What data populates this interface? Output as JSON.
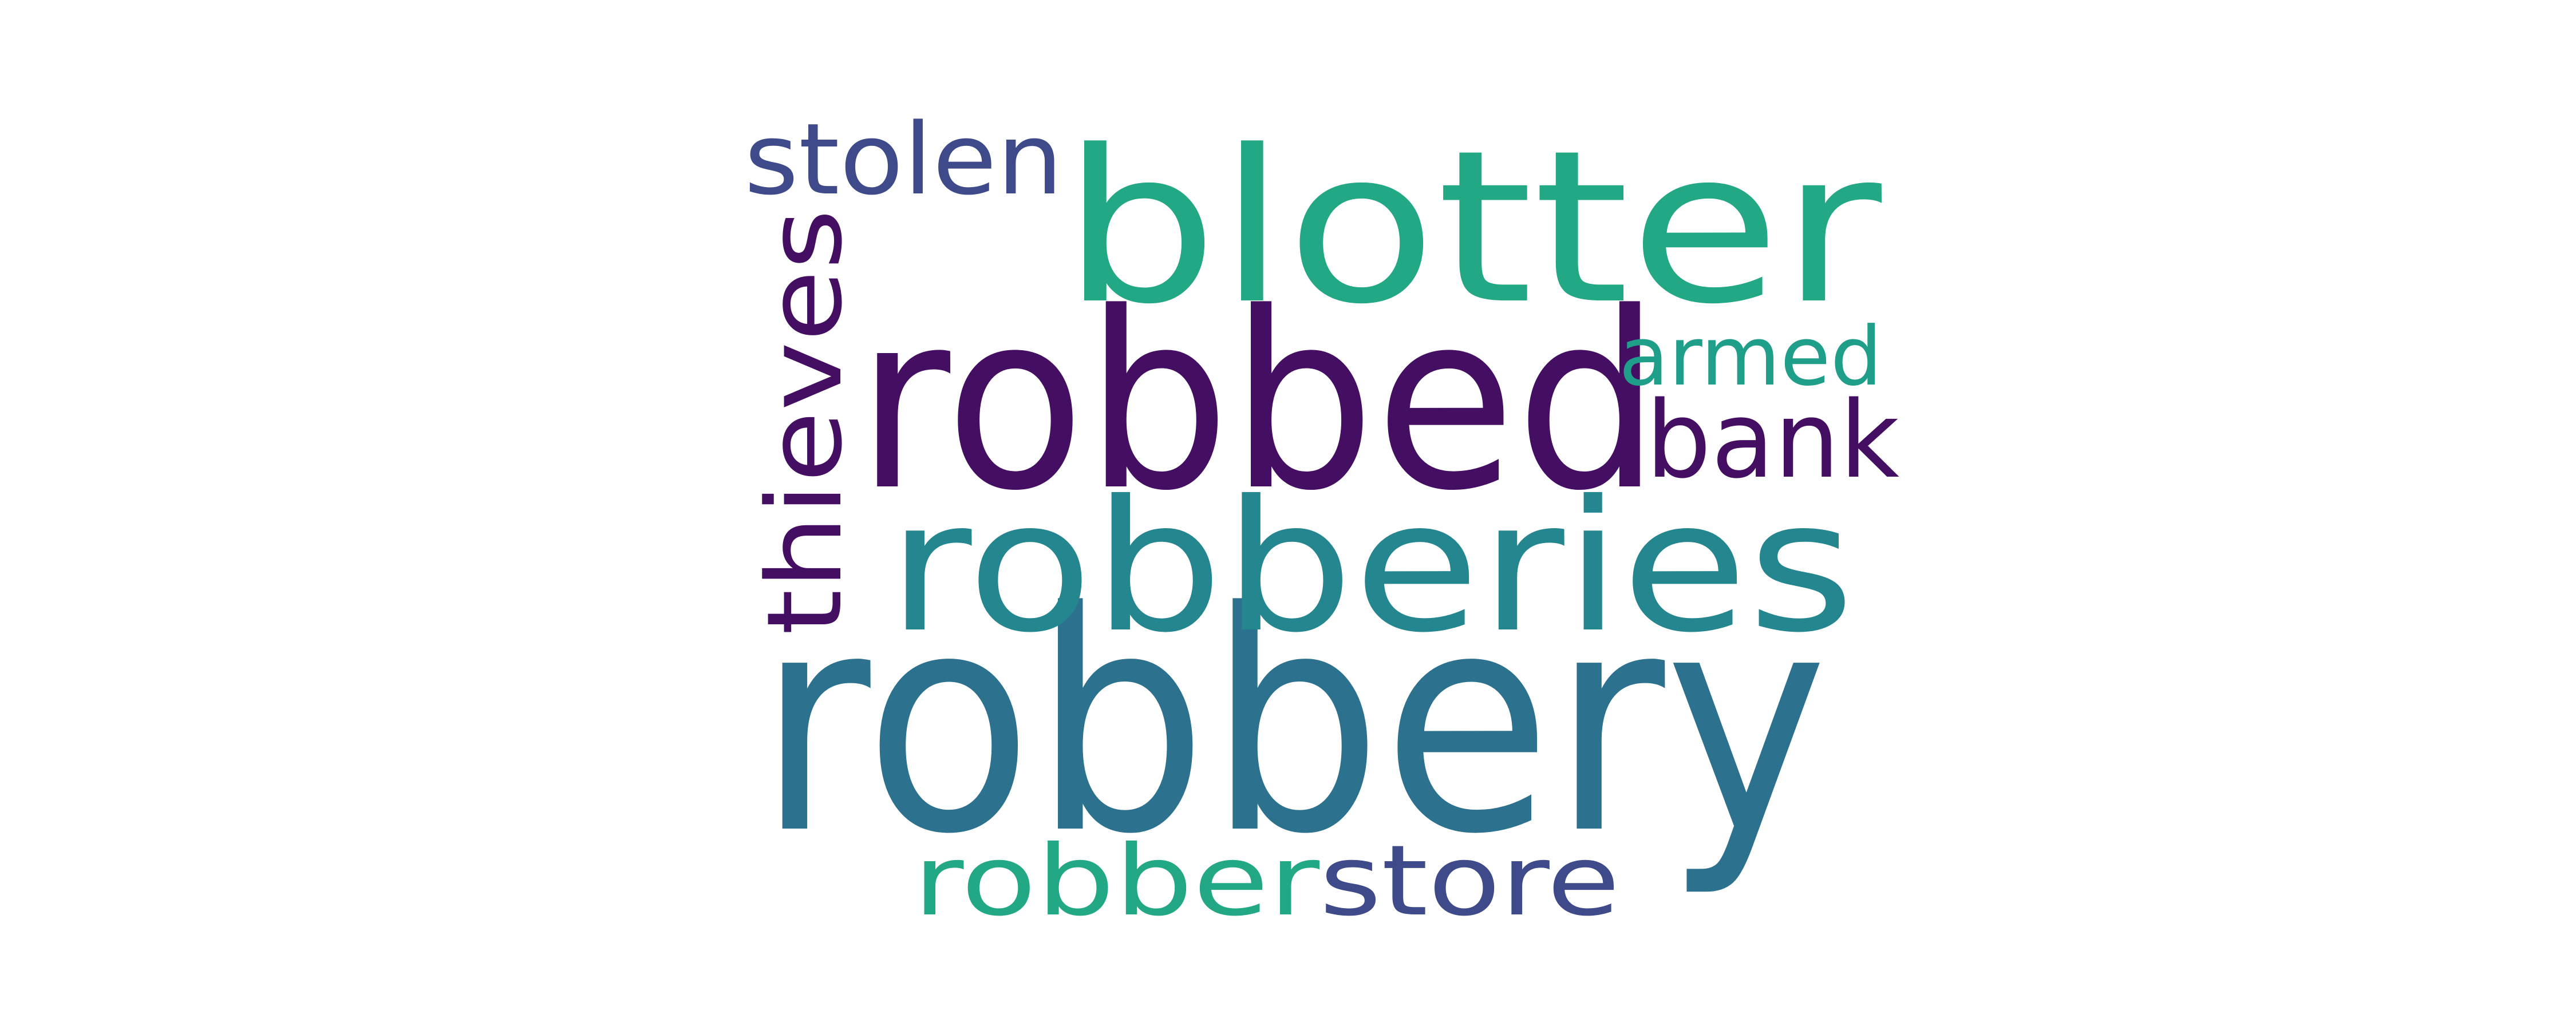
{
  "words": {
    "robbery": {
      "text": "robbery",
      "color": "#2c728e"
    },
    "robbed": {
      "text": "robbed",
      "color": "#440f62"
    },
    "blotter": {
      "text": "blotter",
      "color": "#22a884"
    },
    "robberies": {
      "text": "robberies",
      "color": "#24868e"
    },
    "thieves": {
      "text": "thieves",
      "color": "#440f62"
    },
    "stolen": {
      "text": "stolen",
      "color": "#3e4a89"
    },
    "robber": {
      "text": "robber",
      "color": "#22a884"
    },
    "store": {
      "text": "store",
      "color": "#3e4a89"
    },
    "armed": {
      "text": "armed",
      "color": "#1f9e89"
    },
    "bank": {
      "text": "bank",
      "color": "#440f62"
    }
  }
}
